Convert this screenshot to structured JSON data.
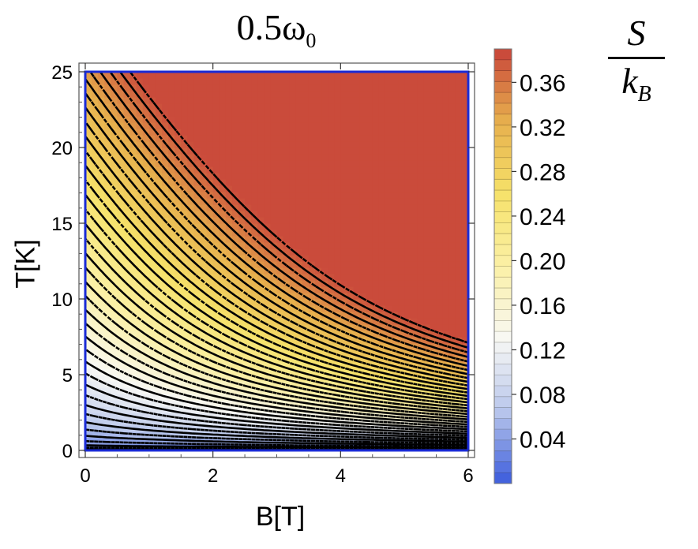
{
  "chart_data": {
    "type": "contour",
    "title": "0.5ω",
    "title_subscript": "0",
    "xlabel": "B[T]",
    "ylabel": "T[K]",
    "xlim": [
      0,
      6
    ],
    "ylim": [
      0,
      25
    ],
    "xticks": [
      0,
      2,
      4,
      6
    ],
    "xtick_labels": [
      "0",
      "2",
      "4",
      "6"
    ],
    "yticks": [
      0,
      5,
      10,
      15,
      20,
      25
    ],
    "ytick_labels": [
      "0",
      "5",
      "10",
      "15",
      "20",
      "25"
    ],
    "colorbar": {
      "title_numerator": "S",
      "title_denominator": "k",
      "title_denominator_subscript": "B",
      "range": [
        0.0,
        0.39
      ],
      "ticks": [
        0.04,
        0.08,
        0.12,
        0.16,
        0.2,
        0.24,
        0.28,
        0.32,
        0.36
      ],
      "tick_labels": [
        "0.04",
        "0.08",
        "0.12",
        "0.16",
        "0.20",
        "0.24",
        "0.28",
        "0.32",
        "0.36"
      ],
      "colormap": [
        "#3a5bdc",
        "#b9c7ec",
        "#f8f8f4",
        "#fbf0a6",
        "#f6e26a",
        "#e7b04d",
        "#c8433a"
      ]
    },
    "contour_styles": [
      "solid",
      "dashed"
    ],
    "contour_interval": 0.01,
    "frame_color": "#1a2bd6",
    "grid": false
  }
}
